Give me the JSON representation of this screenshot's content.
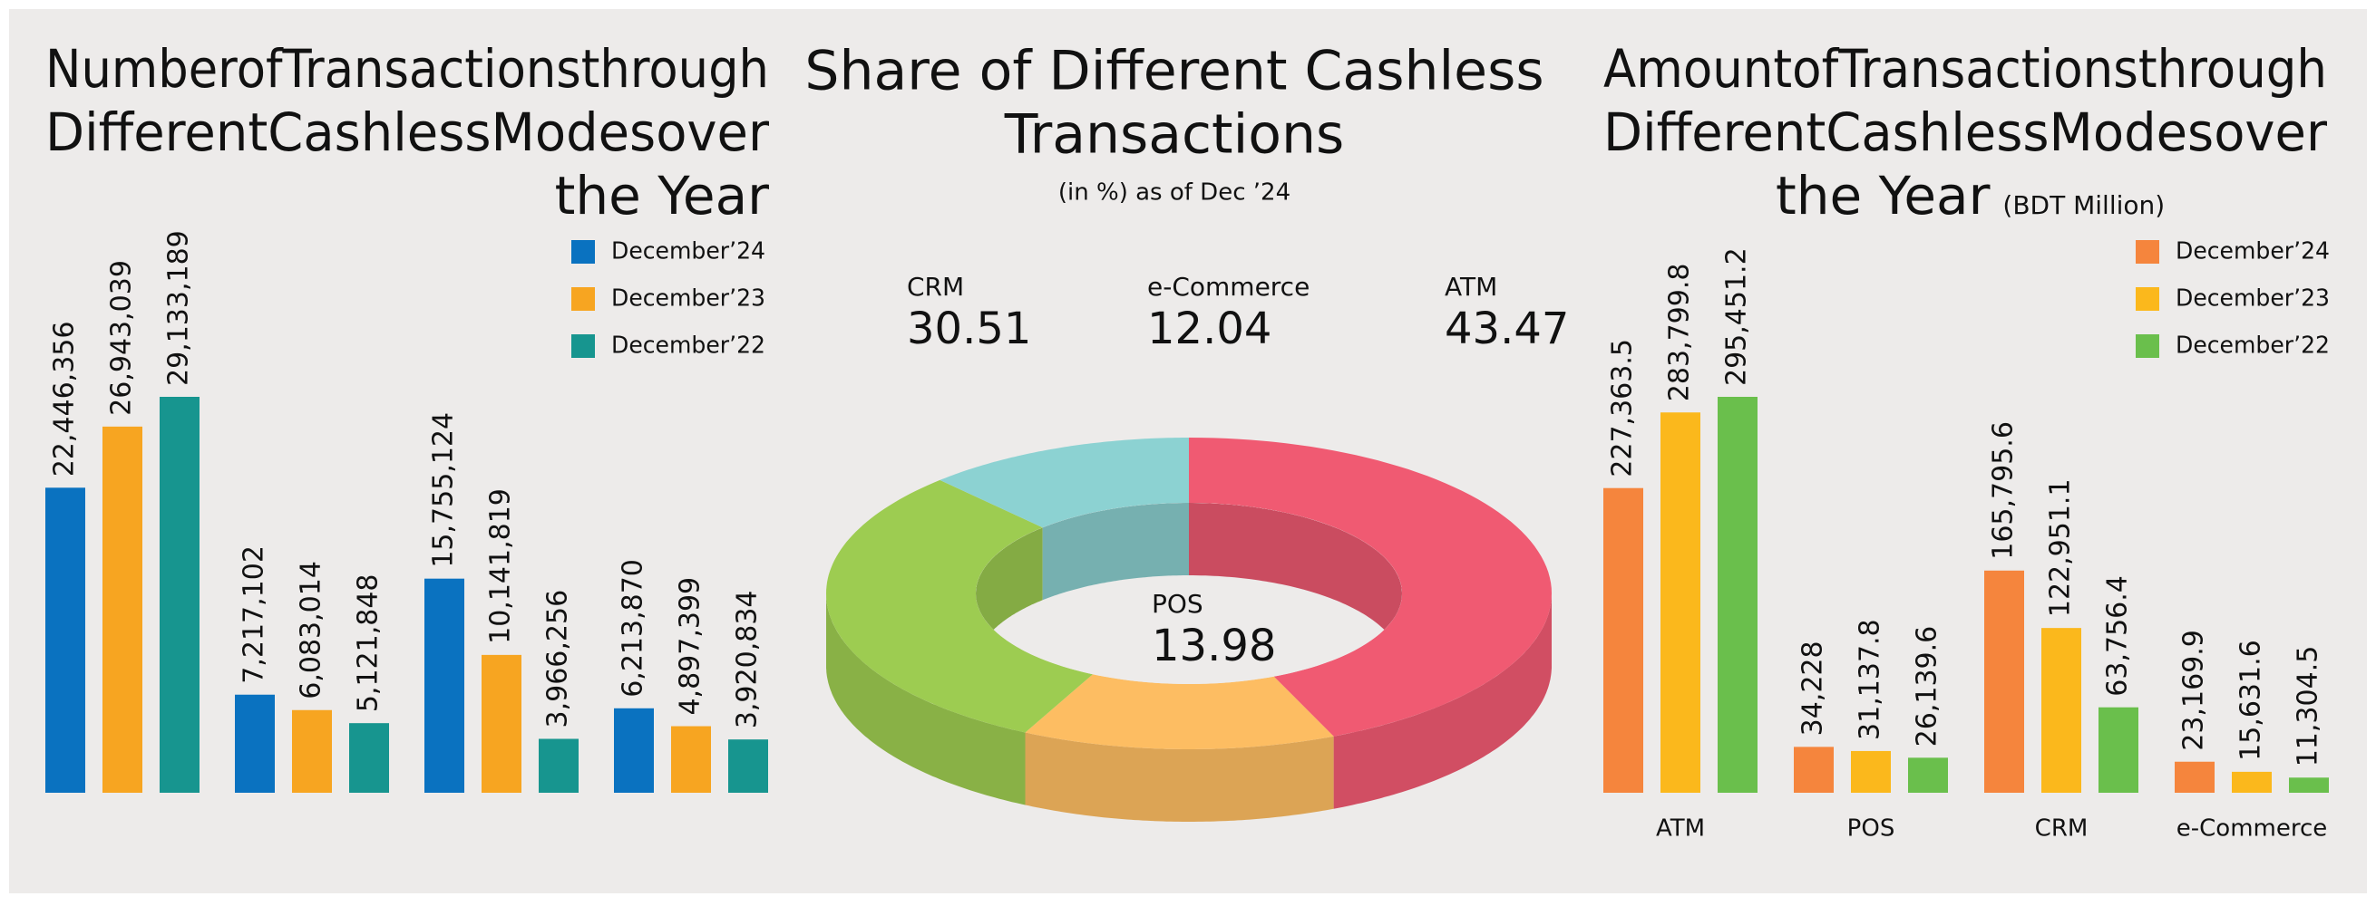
{
  "chart_data": [
    {
      "type": "bar",
      "title": [
        "NumberofTransactionsthrough",
        "DifferentCashlessModesover",
        "the Year"
      ],
      "categories": [
        null,
        null,
        null,
        null
      ],
      "legend": "upper right",
      "series": [
        {
          "name": "December’24",
          "color": "#0a72c0",
          "values": [
            22446356,
            7217102,
            15755124,
            6213870
          ],
          "value_labels": [
            "22,446,356",
            "7,217,102",
            "15,755,124",
            "6,213,870"
          ]
        },
        {
          "name": "December’23",
          "color": "#f7a521",
          "values": [
            26943039,
            6083014,
            10141819,
            4897399
          ],
          "value_labels": [
            "26,943,039",
            "6,083,014",
            "10,141,819",
            "4,897,399"
          ]
        },
        {
          "name": "December’22",
          "color": "#17958f",
          "values": [
            29133189,
            5121848,
            3966256,
            3920834
          ],
          "value_labels": [
            "29,133,189",
            "5,121,848",
            "3,966,256",
            "3,920,834"
          ]
        }
      ]
    },
    {
      "type": "pie",
      "title": [
        "Share of Different Cashless",
        "Transactions"
      ],
      "subtitle": "(in %) as of Dec ’24",
      "categories": [
        "ATM",
        "POS",
        "CRM",
        "e-Commerce"
      ],
      "values": [
        43.47,
        13.98,
        30.51,
        12.04
      ],
      "colors": [
        "#f05a72",
        "#fdbd62",
        "#9dcc51",
        "#8cd2d2"
      ],
      "donut": true
    },
    {
      "type": "bar",
      "title": [
        "AmountofTransactionsthrough",
        "DifferentCashlessModesover",
        "the Year"
      ],
      "subtitle": "(BDT Million)",
      "categories": [
        "ATM",
        "POS",
        "CRM",
        "e-Commerce"
      ],
      "legend": "upper right",
      "series": [
        {
          "name": "December’24",
          "color": "#f5853d",
          "values": [
            227363.5,
            34228,
            165795.6,
            23169.9
          ],
          "value_labels": [
            "227,363.5",
            "34,228",
            "165,795.6",
            "23,169.9"
          ]
        },
        {
          "name": "December’23",
          "color": "#fbb81c",
          "values": [
            283799.8,
            31137.8,
            122951.1,
            15631.6
          ],
          "value_labels": [
            "283,799.8",
            "31,137.8",
            "122,951.1",
            "15,631.6"
          ]
        },
        {
          "name": "December’22",
          "color": "#6abf4c",
          "values": [
            295451.2,
            26139.6,
            63756.4,
            11304.5
          ],
          "value_labels": [
            "295,451.2",
            "26,139.6",
            "63,756.4",
            "11,304.5"
          ]
        }
      ]
    }
  ]
}
